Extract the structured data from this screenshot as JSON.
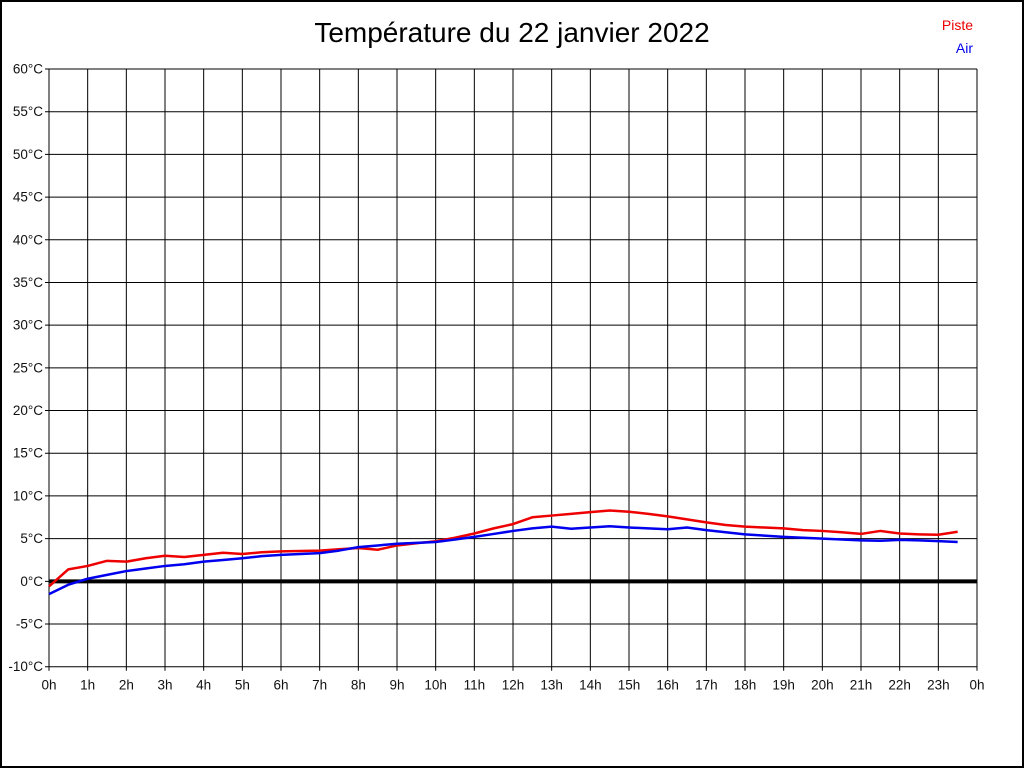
{
  "header": {
    "title": "Température du 22 janvier 2022"
  },
  "chart_data": {
    "type": "line",
    "title": "Température du 22 janvier 2022",
    "xlabel": "",
    "ylabel": "",
    "grid": true,
    "legend_position": "top-right",
    "x_axis": {
      "min": 0,
      "max": 24,
      "tick_step": 1,
      "tick_labels": [
        "0h",
        "1h",
        "2h",
        "3h",
        "4h",
        "5h",
        "6h",
        "7h",
        "8h",
        "9h",
        "10h",
        "11h",
        "12h",
        "13h",
        "14h",
        "15h",
        "16h",
        "17h",
        "18h",
        "19h",
        "20h",
        "21h",
        "22h",
        "23h",
        "0h"
      ]
    },
    "y_axis": {
      "min": -10,
      "max": 60,
      "tick_step": 5,
      "tick_labels": [
        "60°C",
        "55°C",
        "50°C",
        "45°C",
        "40°C",
        "35°C",
        "30°C",
        "25°C",
        "20°C",
        "15°C",
        "10°C",
        "5°C",
        "0°C",
        "-5°C",
        "-10°C"
      ]
    },
    "zero_line": {
      "value": 0,
      "color": "#000000",
      "width": 4
    },
    "x": [
      0,
      0.5,
      1,
      1.5,
      2,
      2.5,
      3,
      3.5,
      4,
      4.5,
      5,
      5.5,
      6,
      6.5,
      7,
      7.5,
      8,
      8.5,
      9,
      9.5,
      10,
      10.5,
      11,
      11.5,
      12,
      12.5,
      13,
      13.5,
      14,
      14.5,
      15,
      15.5,
      16,
      16.5,
      17,
      17.5,
      18,
      18.5,
      19,
      19.5,
      20,
      20.5,
      21,
      21.5,
      22,
      22.5,
      23,
      23.5
    ],
    "series": [
      {
        "name": "Piste",
        "color": "#ee0000",
        "values": [
          -0.6,
          1.4,
          1.8,
          2.4,
          2.3,
          2.7,
          3.0,
          2.85,
          3.1,
          3.35,
          3.2,
          3.4,
          3.5,
          3.55,
          3.6,
          3.75,
          3.9,
          3.7,
          4.2,
          4.45,
          4.7,
          5.1,
          5.6,
          6.2,
          6.7,
          7.5,
          7.7,
          7.9,
          8.1,
          8.3,
          8.15,
          7.9,
          7.6,
          7.25,
          6.9,
          6.6,
          6.4,
          6.3,
          6.2,
          6.0,
          5.9,
          5.75,
          5.55,
          5.9,
          5.6,
          5.5,
          5.45,
          5.8
        ]
      },
      {
        "name": "Air",
        "color": "#0000ee",
        "values": [
          -1.5,
          -0.4,
          0.3,
          0.75,
          1.2,
          1.5,
          1.8,
          2.0,
          2.3,
          2.5,
          2.7,
          2.95,
          3.1,
          3.2,
          3.3,
          3.6,
          4.0,
          4.2,
          4.4,
          4.5,
          4.6,
          4.9,
          5.2,
          5.55,
          5.9,
          6.2,
          6.4,
          6.15,
          6.3,
          6.45,
          6.3,
          6.2,
          6.1,
          6.3,
          6.0,
          5.75,
          5.5,
          5.35,
          5.2,
          5.1,
          5.0,
          4.9,
          4.8,
          4.75,
          4.85,
          4.8,
          4.7,
          4.6
        ]
      }
    ]
  }
}
